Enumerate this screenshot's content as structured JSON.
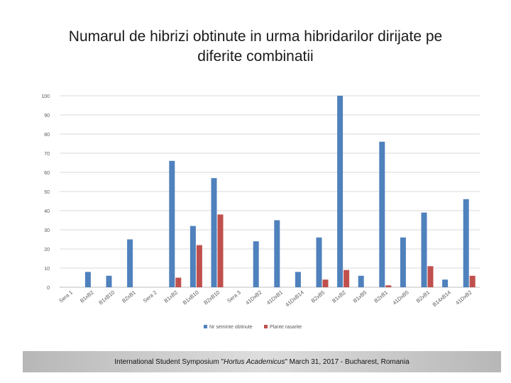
{
  "title_line1": "Numarul de hibrizi obtinute in urma hibridarilor dirijate pe",
  "title_line2": "diferite combinatii",
  "footer": {
    "part1": "International Student Symposium \"",
    "part2": "Hortus Academicus",
    "part3": "\" March 31, 2017 - Bucharest, Romania"
  },
  "chart_data": {
    "type": "bar",
    "categories": [
      "Sera 1",
      "B1xB2",
      "B1xB10",
      "B2xB1",
      "Sera 2",
      "B1xB2",
      "B1xB10",
      "B2xB10",
      "Sera 3",
      "41DxB2",
      "41DxB1",
      "41DxB14",
      "B2xB5",
      "B1xB2",
      "B1xB5",
      "B2xB1",
      "41DxB5",
      "B2xB1",
      "B14xB14",
      "41DxB2"
    ],
    "series": [
      {
        "name": "Nr seminte obtinute",
        "color": "#4f81bd",
        "values": [
          0,
          8,
          6,
          25,
          0,
          66,
          32,
          57,
          0,
          24,
          35,
          8,
          26,
          100,
          6,
          76,
          26,
          39,
          4,
          46
        ]
      },
      {
        "name": "Plante rasarite",
        "color": "#c0504d",
        "values": [
          0,
          0,
          0,
          0,
          0,
          5,
          22,
          38,
          0,
          0,
          0,
          0,
          4,
          9,
          0,
          1,
          0,
          11,
          0,
          6
        ]
      }
    ],
    "ylim": [
      0,
      100
    ],
    "yticks": [
      0,
      10,
      20,
      30,
      40,
      50,
      60,
      70,
      80,
      90,
      100
    ],
    "grid": true,
    "legend_position": "bottom"
  }
}
